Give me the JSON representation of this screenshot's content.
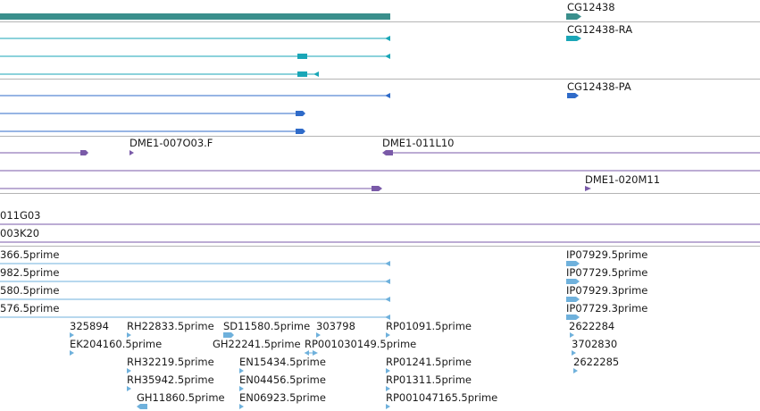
{
  "colors": {
    "gene": "#3a8f8c",
    "transcript_ra": "#1aa6b7",
    "transcript_pa": "#2f6bc9",
    "bac": "#7a5aa8",
    "est": "#6fb1dc",
    "divider": "#b4b4b4",
    "text": "#1a1a1a"
  },
  "gene": {
    "label": "CG12438"
  },
  "transcripts_ra": {
    "label": "CG12438-RA"
  },
  "transcripts_pa": {
    "label": "CG12438-PA"
  },
  "bacs": {
    "labels": [
      "DME1-007O03.F",
      "DME1-011L10",
      "DME1-020M11"
    ]
  },
  "bac_clones": [
    "011G03",
    "003K20"
  ],
  "ests": {
    "left_stub_labels": [
      "366.5prime",
      "982.5prime",
      "580.5prime",
      "576.5prime"
    ],
    "right_labels": [
      "IP07929.5prime",
      "IP07729.5prime",
      "IP07929.3prime",
      "IP07729.3prime"
    ],
    "row1": [
      "325894",
      "RH22833.5prime",
      "SD11580.5prime",
      "303798",
      "RP01091.5prime",
      "2622284"
    ],
    "row2": [
      "EK204160.5prime",
      "GH22241.5prime",
      "RP001030149.5prime",
      "3702830"
    ],
    "row3": [
      "RH32219.5prime",
      "EN15434.5prime",
      "RP01241.5prime",
      "2622285"
    ],
    "row4": [
      "RH35942.5prime",
      "EN04456.5prime",
      "RP01311.5prime"
    ],
    "row5": [
      "GH11860.5prime",
      "EN06923.5prime",
      "RP001047165.5prime"
    ]
  }
}
